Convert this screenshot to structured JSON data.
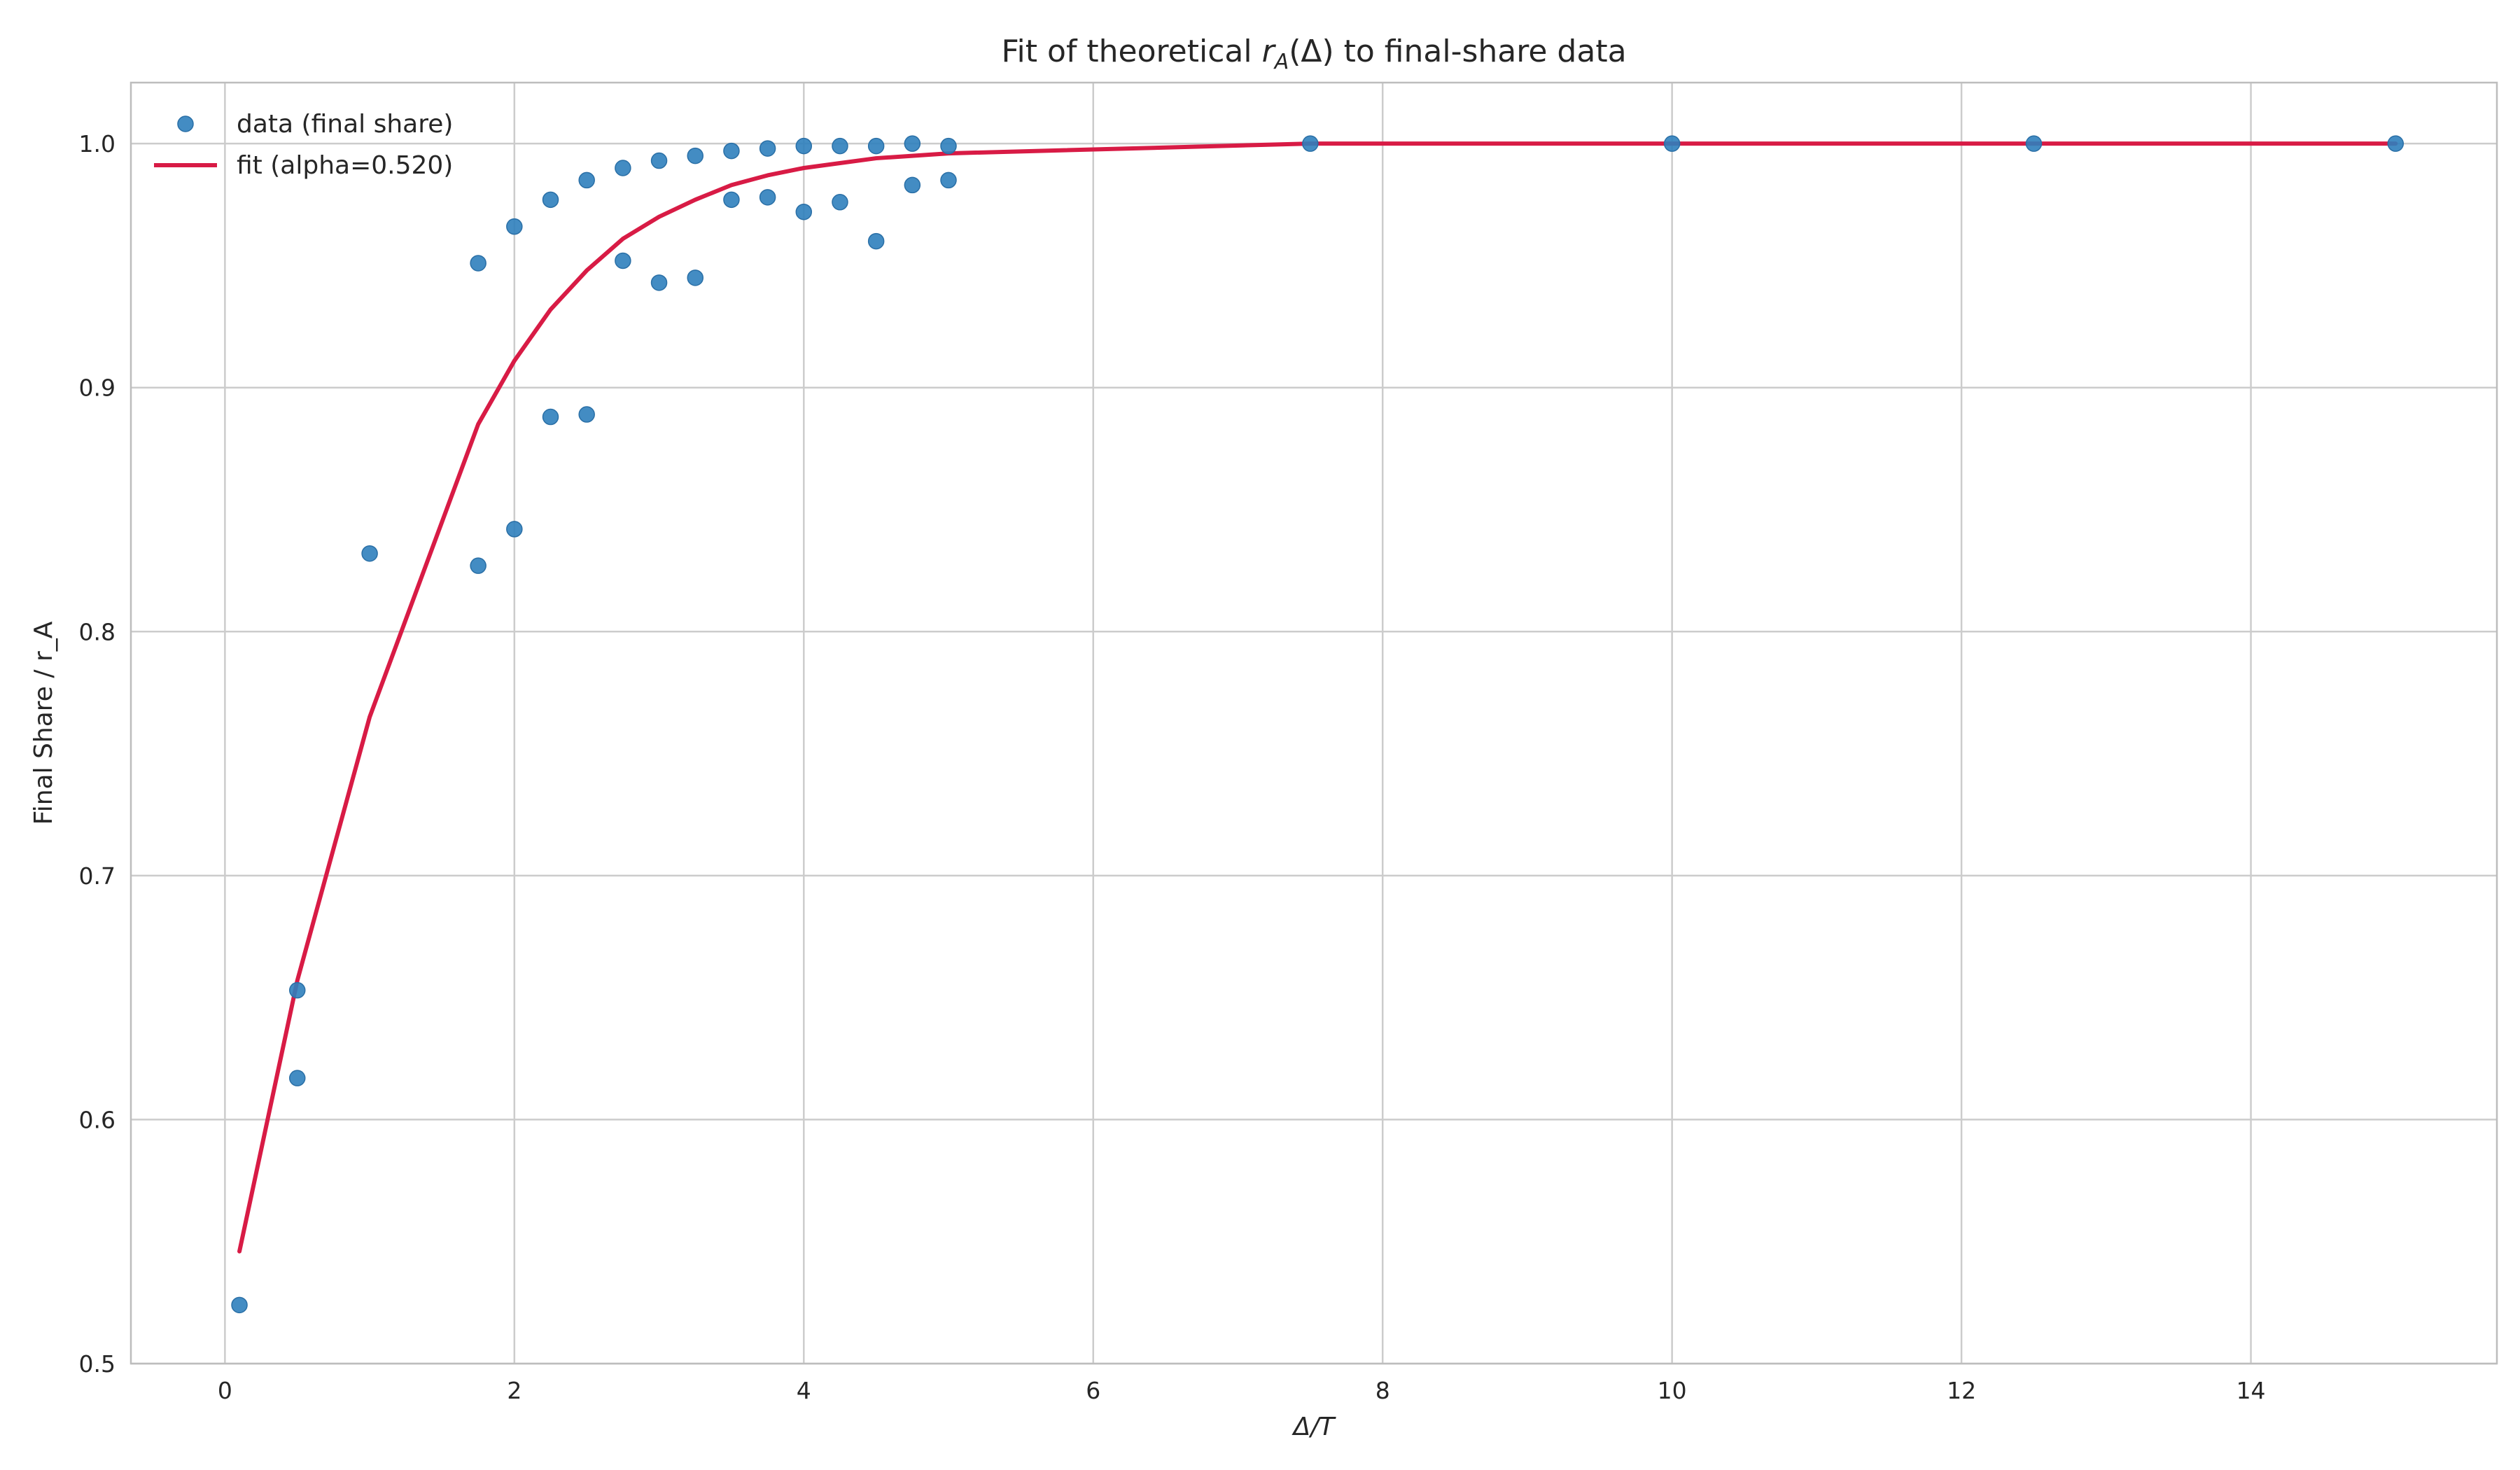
{
  "chart_data": {
    "type": "scatter",
    "title_parts": {
      "prefix": "Fit of theoretical ",
      "var": "r",
      "sub": "A",
      "mid": "(Δ)",
      "suffix": " to final-share data"
    },
    "xlabel": "Δ/T",
    "ylabel": "Final Share / r_A",
    "xlim": [
      -0.65,
      15.7
    ],
    "ylim": [
      0.5,
      1.025
    ],
    "xticks": [
      0,
      2,
      4,
      6,
      8,
      10,
      12,
      14
    ],
    "yticks": [
      0.5,
      0.6,
      0.7,
      0.8,
      0.9,
      1.0
    ],
    "grid": true,
    "legend_position": "top-left",
    "colors": {
      "scatter": "#2f7fbc",
      "fit": "#d81b45",
      "grid": "#cccccc",
      "spine": "#bdbdbd"
    },
    "series": [
      {
        "name": "data (final share)",
        "kind": "scatter",
        "points": [
          [
            0.1,
            0.524
          ],
          [
            0.5,
            0.653
          ],
          [
            0.5,
            0.617
          ],
          [
            1.0,
            0.832
          ],
          [
            1.75,
            0.951
          ],
          [
            1.75,
            0.827
          ],
          [
            2.0,
            0.966
          ],
          [
            2.0,
            0.842
          ],
          [
            2.25,
            0.977
          ],
          [
            2.25,
            0.888
          ],
          [
            2.5,
            0.985
          ],
          [
            2.5,
            0.889
          ],
          [
            2.75,
            0.99
          ],
          [
            2.75,
            0.952
          ],
          [
            3.0,
            0.993
          ],
          [
            3.0,
            0.943
          ],
          [
            3.25,
            0.995
          ],
          [
            3.25,
            0.945
          ],
          [
            3.5,
            0.997
          ],
          [
            3.5,
            0.977
          ],
          [
            3.75,
            0.998
          ],
          [
            3.75,
            0.978
          ],
          [
            4.0,
            0.999
          ],
          [
            4.0,
            0.972
          ],
          [
            4.25,
            0.999
          ],
          [
            4.25,
            0.976
          ],
          [
            4.5,
            0.999
          ],
          [
            4.5,
            0.96
          ],
          [
            4.75,
            1.0
          ],
          [
            4.75,
            0.983
          ],
          [
            5.0,
            0.999
          ],
          [
            5.0,
            0.985
          ],
          [
            7.5,
            1.0
          ],
          [
            10.0,
            1.0
          ],
          [
            12.5,
            1.0
          ],
          [
            15.0,
            1.0
          ]
        ]
      },
      {
        "name": "fit (alpha=0.520)",
        "kind": "line",
        "points": [
          [
            0.1,
            0.546
          ],
          [
            0.5,
            0.657
          ],
          [
            1.0,
            0.765
          ],
          [
            1.75,
            0.885
          ],
          [
            2.0,
            0.911
          ],
          [
            2.25,
            0.932
          ],
          [
            2.5,
            0.948
          ],
          [
            2.75,
            0.961
          ],
          [
            3.0,
            0.97
          ],
          [
            3.25,
            0.977
          ],
          [
            3.5,
            0.983
          ],
          [
            3.75,
            0.987
          ],
          [
            4.0,
            0.99
          ],
          [
            4.25,
            0.992
          ],
          [
            4.5,
            0.994
          ],
          [
            4.75,
            0.995
          ],
          [
            5.0,
            0.996
          ],
          [
            7.5,
            1.0
          ],
          [
            10.0,
            1.0
          ],
          [
            12.5,
            1.0
          ],
          [
            15.0,
            1.0
          ]
        ]
      }
    ]
  }
}
